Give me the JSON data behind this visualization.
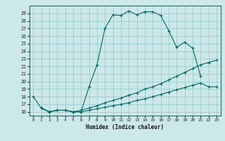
{
  "xlabel": "Humidex (Indice chaleur)",
  "bg_color": "#cce8e8",
  "grid_color": "#99cccc",
  "line_color": "#006666",
  "xlim": [
    -0.5,
    23.5
  ],
  "ylim": [
    15.5,
    30.0
  ],
  "yticks": [
    16,
    17,
    18,
    19,
    20,
    21,
    22,
    23,
    24,
    25,
    26,
    27,
    28,
    29
  ],
  "xticks": [
    0,
    1,
    2,
    3,
    4,
    5,
    6,
    7,
    8,
    9,
    10,
    11,
    12,
    13,
    14,
    15,
    16,
    17,
    18,
    19,
    20,
    21,
    22,
    23
  ],
  "line1_x": [
    0,
    1,
    2,
    3,
    4,
    5,
    6,
    7,
    8,
    9,
    10,
    11,
    12,
    13,
    14,
    15,
    16,
    17,
    18,
    19,
    20,
    21
  ],
  "line1_y": [
    18.0,
    16.5,
    16.0,
    16.2,
    16.2,
    16.0,
    16.0,
    19.3,
    22.2,
    27.0,
    28.8,
    28.7,
    29.3,
    28.8,
    29.2,
    29.2,
    28.7,
    26.7,
    24.5,
    25.2,
    24.4,
    20.7
  ],
  "line2_x": [
    1,
    2,
    3,
    4,
    5,
    6,
    7,
    8,
    9,
    10,
    11,
    12,
    13,
    14,
    15,
    16,
    17,
    18,
    19,
    20,
    21,
    22,
    23
  ],
  "line2_y": [
    16.5,
    16.0,
    16.2,
    16.2,
    16.0,
    16.2,
    16.5,
    16.8,
    17.2,
    17.5,
    17.8,
    18.2,
    18.5,
    19.0,
    19.3,
    19.7,
    20.2,
    20.7,
    21.2,
    21.7,
    22.2,
    22.5,
    22.8
  ],
  "line3_x": [
    1,
    2,
    3,
    4,
    5,
    6,
    7,
    8,
    9,
    10,
    11,
    12,
    13,
    14,
    15,
    16,
    17,
    18,
    19,
    20,
    21,
    22,
    23
  ],
  "line3_y": [
    16.5,
    16.0,
    16.2,
    16.2,
    16.0,
    16.0,
    16.2,
    16.4,
    16.6,
    16.8,
    17.0,
    17.2,
    17.5,
    17.7,
    18.0,
    18.3,
    18.6,
    18.9,
    19.2,
    19.5,
    19.8,
    19.3,
    19.3
  ]
}
